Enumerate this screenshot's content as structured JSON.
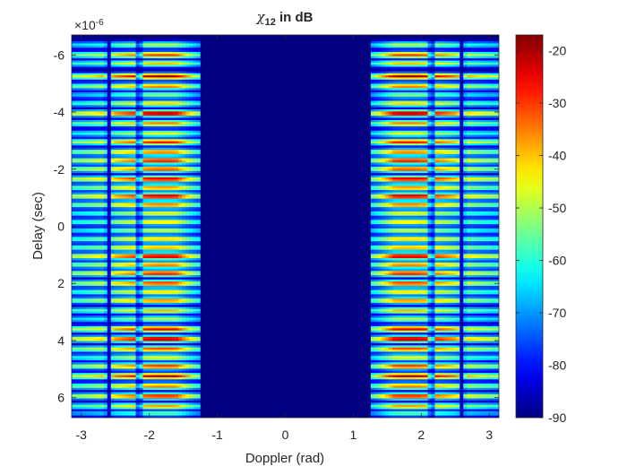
{
  "chart_data": {
    "type": "heatmap",
    "title": {
      "symbol": "χ",
      "subscript": "12",
      "suffix": " in dB"
    },
    "xlabel": "Doppler (rad)",
    "ylabel": "Delay (sec)",
    "xlim": [
      -3.1416,
      3.1416
    ],
    "ylim": [
      -6.7,
      6.7
    ],
    "y_exponent_label": "×10",
    "y_exponent_power": "-6",
    "y_direction": "reverse",
    "x_ticks": [
      {
        "value": -3,
        "label": "-3"
      },
      {
        "value": -2,
        "label": "-2"
      },
      {
        "value": -1,
        "label": "-1"
      },
      {
        "value": 0,
        "label": "0"
      },
      {
        "value": 1,
        "label": "1"
      },
      {
        "value": 2,
        "label": "2"
      },
      {
        "value": 3,
        "label": "3"
      }
    ],
    "y_ticks": [
      {
        "value": -6,
        "label": "-6"
      },
      {
        "value": -4,
        "label": "-4"
      },
      {
        "value": -2,
        "label": "-2"
      },
      {
        "value": 0,
        "label": "0"
      },
      {
        "value": 2,
        "label": "2"
      },
      {
        "value": 4,
        "label": "4"
      },
      {
        "value": 6,
        "label": "6"
      }
    ],
    "colormap": "jet",
    "clim": [
      -90,
      -17
    ],
    "colorbar_ticks": [
      {
        "value": -20,
        "label": "-20"
      },
      {
        "value": -30,
        "label": "-30"
      },
      {
        "value": -40,
        "label": "-40"
      },
      {
        "value": -50,
        "label": "-50"
      },
      {
        "value": -60,
        "label": "-60"
      },
      {
        "value": -70,
        "label": "-70"
      },
      {
        "value": -80,
        "label": "-80"
      },
      {
        "value": -90,
        "label": "-90"
      }
    ],
    "doppler_gap": [
      -1.25,
      1.25
    ],
    "doppler_lobes": [
      {
        "center": -1.8,
        "peak_db": -18
      },
      {
        "center": 1.8,
        "peak_db": -18
      }
    ],
    "doppler_notches": [
      -2.6,
      -2.15,
      2.15,
      2.6
    ],
    "delay_bands": [
      {
        "delay": -6.35,
        "level_db": -48
      },
      {
        "delay": -6.0,
        "level_db": -30
      },
      {
        "delay": -5.7,
        "level_db": -40
      },
      {
        "delay": -5.25,
        "level_db": -19
      },
      {
        "delay": -4.9,
        "level_db": -33
      },
      {
        "delay": -4.6,
        "level_db": -52
      },
      {
        "delay": -4.3,
        "level_db": -40
      },
      {
        "delay": -3.95,
        "level_db": -17
      },
      {
        "delay": -3.6,
        "level_db": -35
      },
      {
        "delay": -3.25,
        "level_db": -45
      },
      {
        "delay": -2.95,
        "level_db": -27
      },
      {
        "delay": -2.6,
        "level_db": -32
      },
      {
        "delay": -2.3,
        "level_db": -25
      },
      {
        "delay": -2.0,
        "level_db": -29
      },
      {
        "delay": -1.65,
        "level_db": -22
      },
      {
        "delay": -1.35,
        "level_db": -34
      },
      {
        "delay": -1.05,
        "level_db": -21
      },
      {
        "delay": -0.75,
        "level_db": -32
      },
      {
        "delay": -0.45,
        "level_db": -44
      },
      {
        "delay": -0.15,
        "level_db": -40
      },
      {
        "delay": 0.15,
        "level_db": -47
      },
      {
        "delay": 0.45,
        "level_db": -38
      },
      {
        "delay": 0.75,
        "level_db": -36
      },
      {
        "delay": 1.05,
        "level_db": -20
      },
      {
        "delay": 1.35,
        "level_db": -32
      },
      {
        "delay": 1.65,
        "level_db": -26
      },
      {
        "delay": 2.0,
        "level_db": -28
      },
      {
        "delay": 2.3,
        "level_db": -40
      },
      {
        "delay": 2.6,
        "level_db": -33
      },
      {
        "delay": 2.95,
        "level_db": -39
      },
      {
        "delay": 3.25,
        "level_db": -48
      },
      {
        "delay": 3.6,
        "level_db": -24
      },
      {
        "delay": 3.95,
        "level_db": -17
      },
      {
        "delay": 4.3,
        "level_db": -30
      },
      {
        "delay": 4.6,
        "level_db": -44
      },
      {
        "delay": 4.9,
        "level_db": -28
      },
      {
        "delay": 5.25,
        "level_db": -20
      },
      {
        "delay": 5.6,
        "level_db": -33
      },
      {
        "delay": 5.95,
        "level_db": -25
      },
      {
        "delay": 6.3,
        "level_db": -37
      },
      {
        "delay": 6.55,
        "level_db": -55
      }
    ],
    "band_halfwidth": 0.12,
    "background_db": -90
  }
}
